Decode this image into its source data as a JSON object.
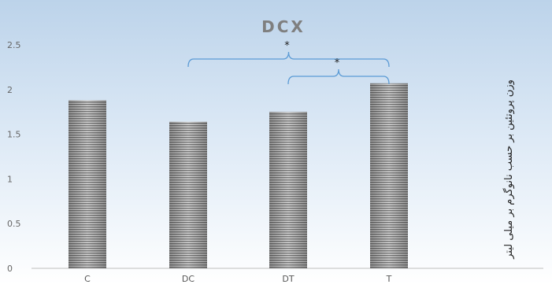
{
  "chart_data": {
    "type": "bar",
    "title": "DCX",
    "ylabel": "وزن پروتئین بر حسب نانوگرم بر میلی لیتر",
    "xlabel": "",
    "categories": [
      "C",
      "DC",
      "DT",
      "T"
    ],
    "values": [
      1.88,
      1.64,
      1.75,
      2.07
    ],
    "ylim": [
      0,
      2.5
    ],
    "yticks": [
      0,
      0.5,
      1,
      1.5,
      2,
      2.5
    ],
    "ytick_labels": [
      "0",
      "0.5",
      "1",
      "1.5",
      "2",
      "2.5"
    ],
    "grid": false,
    "legend": "none",
    "bar_fill": "striped-gray",
    "background": "light-blue-gradient",
    "annotations": [
      {
        "from": "DC",
        "to": "T",
        "label": "*"
      },
      {
        "from": "DT",
        "to": "T",
        "label": "*"
      }
    ]
  }
}
